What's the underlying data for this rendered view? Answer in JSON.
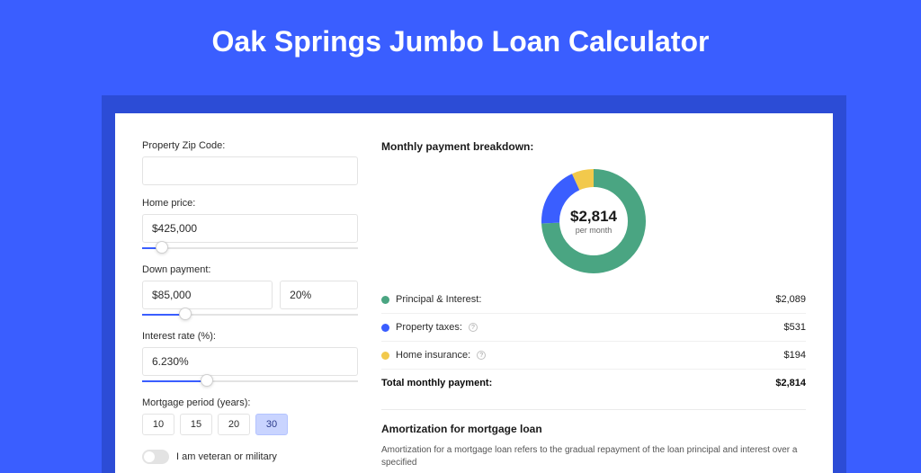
{
  "page": {
    "title": "Oak Springs Jumbo Loan Calculator",
    "background_color": "#3a5eff",
    "shadow_color": "#2c4cd6",
    "card_color": "#ffffff"
  },
  "form": {
    "zip": {
      "label": "Property Zip Code:",
      "value": ""
    },
    "home_price": {
      "label": "Home price:",
      "value": "$425,000",
      "slider_pct": 9
    },
    "down_payment": {
      "label": "Down payment:",
      "amount": "$85,000",
      "percent": "20%",
      "slider_pct": 20
    },
    "interest_rate": {
      "label": "Interest rate (%):",
      "value": "6.230%",
      "slider_pct": 30
    },
    "mortgage_period": {
      "label": "Mortgage period (years):",
      "options": [
        "10",
        "15",
        "20",
        "30"
      ],
      "selected": "30"
    },
    "veteran": {
      "label": "I am veteran or military",
      "checked": false
    }
  },
  "breakdown": {
    "title": "Monthly payment breakdown:",
    "center_amount": "$2,814",
    "center_sub": "per month",
    "items": [
      {
        "label": "Principal & Interest:",
        "value": "$2,089",
        "color": "#4aa582",
        "has_info": false,
        "degrees": 267
      },
      {
        "label": "Property taxes:",
        "value": "$531",
        "color": "#3a5eff",
        "has_info": true,
        "degrees": 68
      },
      {
        "label": "Home insurance:",
        "value": "$194",
        "color": "#f2c94c",
        "has_info": true,
        "degrees": 25
      }
    ],
    "total": {
      "label": "Total monthly payment:",
      "value": "$2,814"
    }
  },
  "amortization": {
    "title": "Amortization for mortgage loan",
    "text": "Amortization for a mortgage loan refers to the gradual repayment of the loan principal and interest over a specified"
  },
  "style": {
    "accent": "#3a5eff",
    "border": "#e3e3e3",
    "text": "#2b2b2b",
    "donut_bg": "#ffffff",
    "donut_stroke_width": 20
  }
}
